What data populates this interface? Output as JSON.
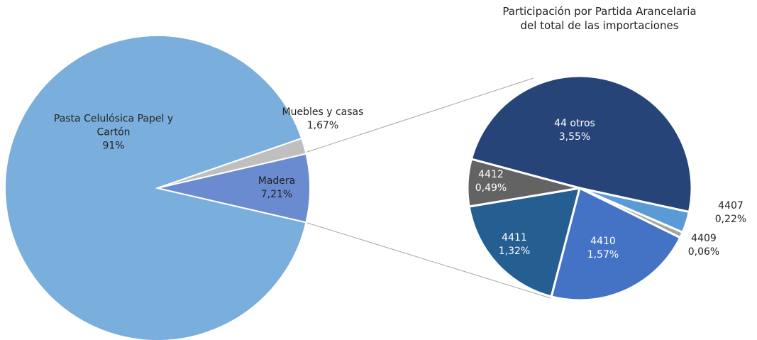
{
  "chart_data": [
    {
      "type": "pie",
      "categories": [
        "Pasta Celulósica Papel y Cartón",
        "Muebles y casas",
        "Madera"
      ],
      "values": [
        91,
        1.67,
        7.21
      ],
      "value_labels": [
        "91%",
        "1,67%",
        "7,21%"
      ],
      "colors": [
        "#7aaedc",
        "#bfbfbf",
        "#6a8bd0"
      ]
    },
    {
      "type": "pie",
      "title": "Participación por Partida Arancelaria del total de las importaciones",
      "categories": [
        "44 otros",
        "4407",
        "4409",
        "4410",
        "4411",
        "4412"
      ],
      "values": [
        3.55,
        0.22,
        0.06,
        1.57,
        1.32,
        0.49
      ],
      "value_labels": [
        "3,55%",
        "0,22%",
        "0,06%",
        "1,57%",
        "1,32%",
        "0,49%"
      ],
      "colors": [
        "#264478",
        "#5b9bd5",
        "#a5a5a5",
        "#4472c4",
        "#255e91",
        "#636363"
      ]
    }
  ]
}
